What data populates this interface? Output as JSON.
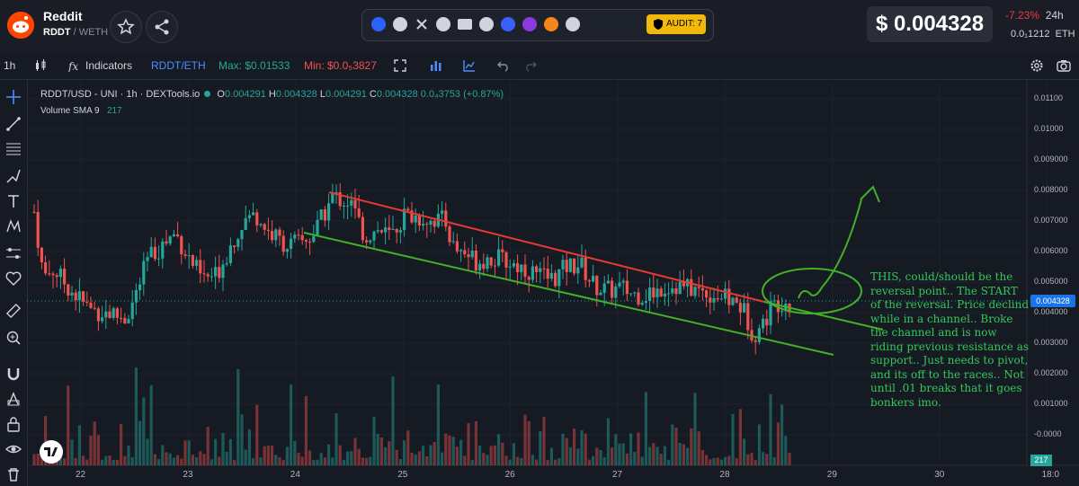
{
  "header": {
    "token_name": "Reddit",
    "pair_main": "RDDT",
    "pair_sep": " / ",
    "pair_quote": "WETH",
    "audit_label": "AUDIT: 7",
    "price": "$ 0.004328",
    "change": "-7.23%",
    "change_period": "24h",
    "eth_price": "0.0₁1212",
    "eth_unit": "ETH",
    "social_icons": [
      "chart-icon",
      "globe-icon",
      "x-icon",
      "telegram-icon",
      "mail-icon",
      "reddit-icon",
      "coinmarketcap-icon",
      "coingecko-icon",
      "metamask-icon",
      "more-icon"
    ]
  },
  "toolbar": {
    "interval": "1h",
    "indicators": "Indicators",
    "pair": "RDDT/ETH",
    "max": "Max: $0.01533",
    "min": "Min: $0.0₅3827"
  },
  "legend": {
    "symbol": "RDDT/USD - UNI · 1h · DEXTools.io",
    "o_label": "O",
    "o": "0.004291",
    "h_label": "H",
    "h": "0.004328",
    "l_label": "L",
    "l": "0.004291",
    "c_label": "C",
    "c": "0.004328",
    "change": "0.0₄3753 (+0.87%)",
    "volume_label": "Volume SMA 9",
    "volume_value": "217"
  },
  "annotation": "THIS, could/should be the reversal point.. The START of the reversal. Price declind while in a channel.. Broke the channel and is now riding previous resistance as support.. Just needs to pivot, and its off to the races.. Not until .01 breaks that it goes bonkers imo.",
  "price_tag": "0.004328",
  "volume_tag": "217",
  "colors": {
    "up": "#26a69a",
    "down": "#ef5350",
    "resistance": "#e53935",
    "support": "#43b02a",
    "annotation": "#34c759"
  },
  "chart_data": {
    "type": "candlestick",
    "y_ticks": [
      "0.01100",
      "0.01000",
      "0.009000",
      "0.008000",
      "0.007000",
      "0.006000",
      "0.005000",
      "0.004000",
      "0.003000",
      "0.002000",
      "0.001000",
      "-0.0000"
    ],
    "x_ticks": [
      "22",
      "23",
      "24",
      "25",
      "26",
      "27",
      "28",
      "29",
      "30",
      "18:0"
    ],
    "ylim": [
      0,
      0.0115
    ],
    "last_price": 0.004328
  }
}
